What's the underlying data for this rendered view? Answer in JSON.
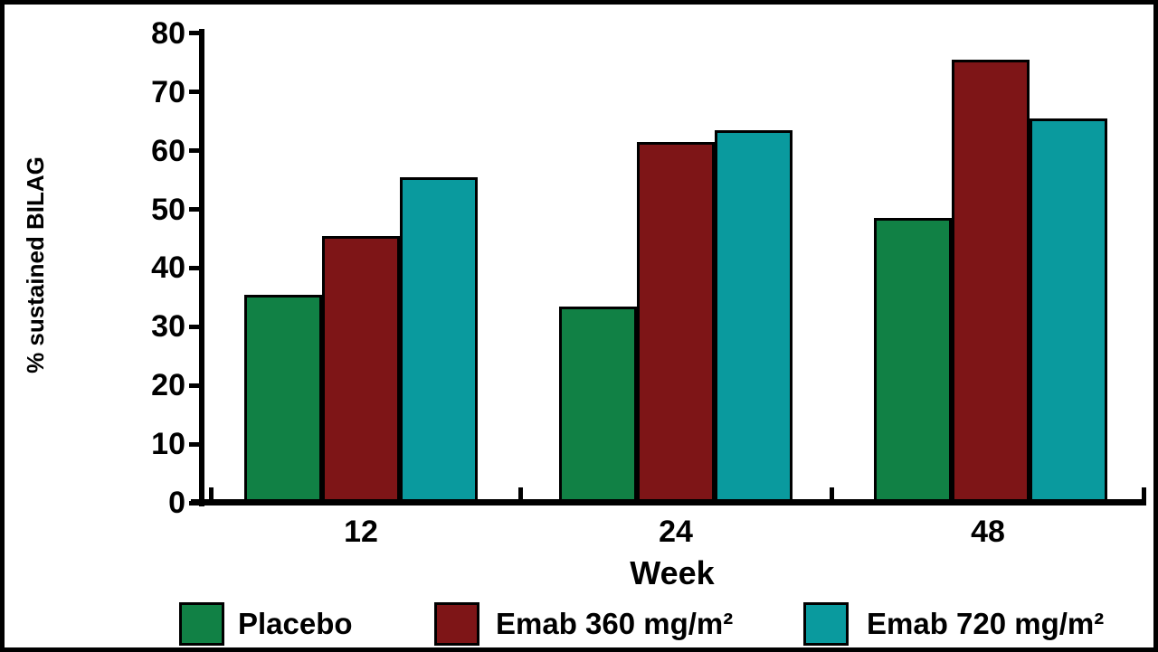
{
  "chart_data": {
    "type": "bar",
    "title": "",
    "xlabel": "Week",
    "ylabel": "% sustained BILAG",
    "categories": [
      "12",
      "24",
      "48"
    ],
    "series": [
      {
        "name": "Placebo",
        "color": "#118145",
        "values": [
          35,
          33,
          48
        ]
      },
      {
        "name": "Emab 360 mg/m²",
        "color": "#7E1517",
        "values": [
          45,
          61,
          75
        ]
      },
      {
        "name": "Emab 720 mg/m²",
        "color": "#0A9A9E",
        "values": [
          55,
          63,
          65
        ]
      }
    ],
    "ylim": [
      0,
      80
    ],
    "ytick_step": 10,
    "yticks": [
      0,
      10,
      20,
      30,
      40,
      50,
      60,
      70,
      80
    ],
    "grid": false,
    "legend_position": "bottom",
    "bar_border_color": "#000000",
    "axis_color": "#000000",
    "background_color": "#FFFFFF"
  }
}
